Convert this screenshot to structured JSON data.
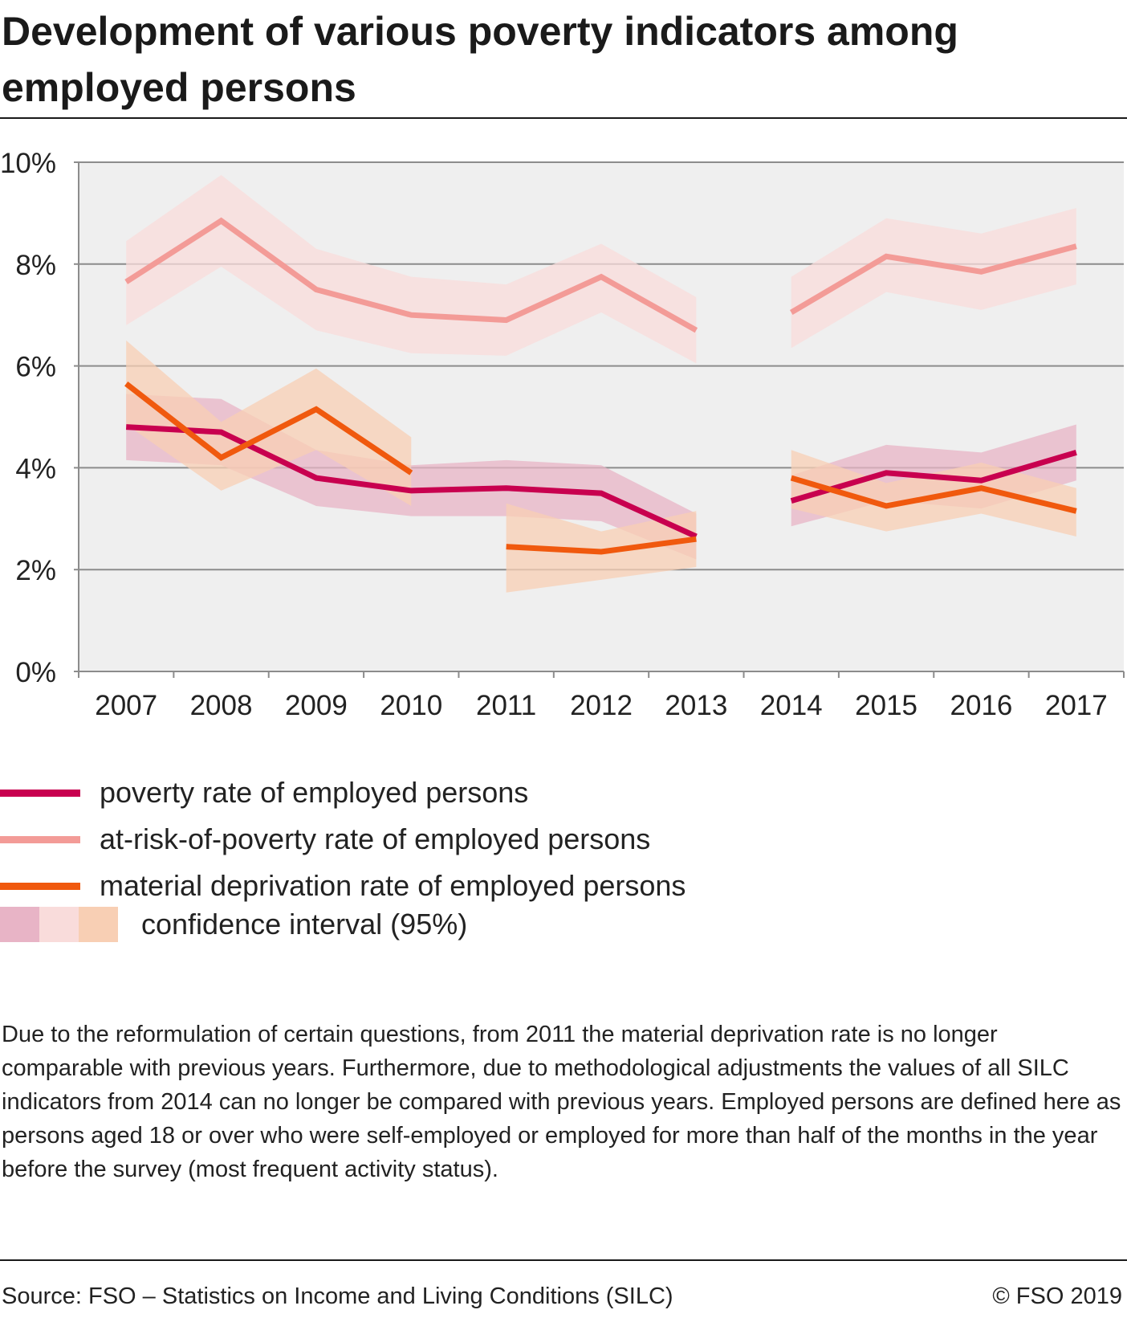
{
  "title": "Development of various poverty indicators among employed persons",
  "chart_data": {
    "type": "line",
    "x": [
      "2007",
      "2008",
      "2009",
      "2010",
      "2011",
      "2012",
      "2013",
      "2014",
      "2015",
      "2016",
      "2017"
    ],
    "ylim": [
      0,
      10
    ],
    "yticks": [
      0,
      2,
      4,
      6,
      8,
      10
    ],
    "ytick_labels": [
      "0%",
      "2%",
      "4%",
      "6%",
      "8%",
      "10%"
    ],
    "grid": true,
    "legend_placement": "bottom",
    "series": [
      {
        "name": "poverty rate of employed persons",
        "color": "#c8004f",
        "band_color": "#e8b4c6",
        "values": [
          4.8,
          4.7,
          3.8,
          3.55,
          3.6,
          3.5,
          2.65,
          3.35,
          3.9,
          3.75,
          4.3
        ],
        "lower": [
          4.15,
          4.05,
          3.25,
          3.05,
          3.05,
          2.95,
          2.2,
          2.85,
          3.35,
          3.2,
          3.75
        ],
        "upper": [
          5.45,
          5.35,
          4.35,
          4.05,
          4.15,
          4.05,
          3.1,
          3.85,
          4.45,
          4.3,
          4.85
        ],
        "segments": [
          [
            0,
            6
          ],
          [
            7,
            10
          ]
        ]
      },
      {
        "name": "at-risk-of-poverty rate of employed persons",
        "color": "#f39b97",
        "band_color": "#f9dcdb",
        "values": [
          7.65,
          8.85,
          7.5,
          7.0,
          6.9,
          7.75,
          6.7,
          7.05,
          8.15,
          7.85,
          8.35
        ],
        "lower": [
          6.8,
          7.95,
          6.7,
          6.25,
          6.2,
          7.05,
          6.05,
          6.35,
          7.45,
          7.1,
          7.6
        ],
        "upper": [
          8.45,
          9.75,
          8.3,
          7.75,
          7.6,
          8.4,
          7.35,
          7.75,
          8.9,
          8.6,
          9.1
        ],
        "segments": [
          [
            0,
            6
          ],
          [
            7,
            10
          ]
        ]
      },
      {
        "name": "material deprivation rate of employed persons",
        "color": "#f0590e",
        "band_color": "#f8cfb4",
        "values": [
          5.65,
          4.2,
          5.15,
          3.9,
          2.45,
          2.35,
          2.6,
          3.8,
          3.25,
          3.6,
          3.15
        ],
        "lower": [
          4.85,
          3.55,
          4.35,
          3.25,
          1.55,
          1.8,
          2.05,
          3.2,
          2.75,
          3.1,
          2.65
        ],
        "upper": [
          6.5,
          4.9,
          5.95,
          4.6,
          3.3,
          2.75,
          3.15,
          4.35,
          3.7,
          4.1,
          3.6
        ],
        "segments": [
          [
            0,
            3
          ],
          [
            4,
            6
          ],
          [
            7,
            10
          ]
        ]
      }
    ]
  },
  "legend": {
    "ci_label": "confidence interval (95%)",
    "ci_colors": [
      "#e8b4c6",
      "#f9dcdb",
      "#f8cfb4"
    ]
  },
  "note": "Due to the reformulation of certain questions, from 2011 the material deprivation rate is no longer comparable with previous years. Furthermore, due to methodological adjustments the values of all SILC indicators from 2014 can no longer be compared with previous years. Employed persons are defined here as persons aged 18 or over who were self-employed or employed for more than half of the months in the year before the survey (most frequent activity status).",
  "source": "Source: FSO – Statistics on Income and Living Conditions (SILC)",
  "copyright": "© FSO 2019"
}
